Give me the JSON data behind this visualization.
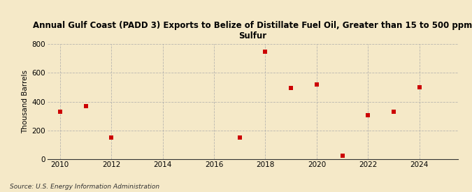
{
  "title": "Annual Gulf Coast (PADD 3) Exports to Belize of Distillate Fuel Oil, Greater than 15 to 500 ppm\nSulfur",
  "ylabel": "Thousand Barrels",
  "source": "Source: U.S. Energy Information Administration",
  "background_color": "#f5e9c8",
  "plot_bg_color": "#f5e9c8",
  "years": [
    2010,
    2011,
    2012,
    2017,
    2018,
    2019,
    2020,
    2021,
    2022,
    2023,
    2024
  ],
  "values": [
    330,
    370,
    150,
    150,
    750,
    495,
    520,
    25,
    305,
    330,
    500
  ],
  "marker_color": "#cc0000",
  "marker": "s",
  "marker_size": 5,
  "xlim": [
    2009.5,
    2025.5
  ],
  "ylim": [
    0,
    800
  ],
  "yticks": [
    0,
    200,
    400,
    600,
    800
  ],
  "xticks": [
    2010,
    2012,
    2014,
    2016,
    2018,
    2020,
    2022,
    2024
  ]
}
